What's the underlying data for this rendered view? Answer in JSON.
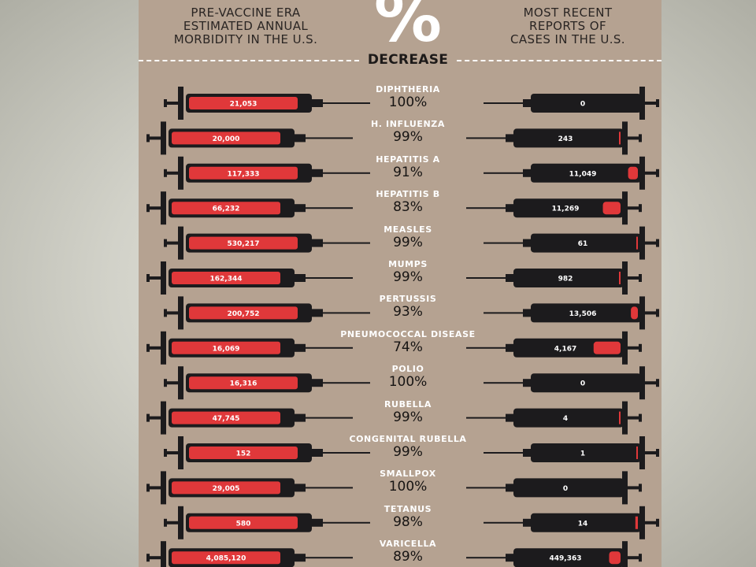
{
  "header": {
    "left_label": "PRE-VACCINE ERA\nESTIMATED ANNUAL\nMORBIDITY IN THE U.S.",
    "right_label": "MOST RECENT\nREPORTS OF\nCASES IN THE U.S.",
    "percent_symbol": "%",
    "center_label": "DECREASE"
  },
  "colors": {
    "panel": "#b5a291",
    "syringe_body": "#1c1b1d",
    "fill_red": "#e0383a",
    "text_white": "#ffffff"
  },
  "chart_data": {
    "type": "table",
    "columns": [
      "Disease",
      "Pre-vaccine era estimated annual morbidity",
      "% decrease",
      "Most recent reports of cases"
    ],
    "rows": [
      {
        "disease": "DIPHTHERIA",
        "pre": "21,053",
        "pct": "100%",
        "recent": "0",
        "pre_value": 21053,
        "recent_value": 0
      },
      {
        "disease": "H. INFLUENZA",
        "pre": "20,000",
        "pct": "99%",
        "recent": "243",
        "pre_value": 20000,
        "recent_value": 243
      },
      {
        "disease": "HEPATITIS A",
        "pre": "117,333",
        "pct": "91%",
        "recent": "11,049",
        "pre_value": 117333,
        "recent_value": 11049
      },
      {
        "disease": "HEPATITIS B",
        "pre": "66,232",
        "pct": "83%",
        "recent": "11,269",
        "pre_value": 66232,
        "recent_value": 11269
      },
      {
        "disease": "MEASLES",
        "pre": "530,217",
        "pct": "99%",
        "recent": "61",
        "pre_value": 530217,
        "recent_value": 61
      },
      {
        "disease": "MUMPS",
        "pre": "162,344",
        "pct": "99%",
        "recent": "982",
        "pre_value": 162344,
        "recent_value": 982
      },
      {
        "disease": "PERTUSSIS",
        "pre": "200,752",
        "pct": "93%",
        "recent": "13,506",
        "pre_value": 200752,
        "recent_value": 13506
      },
      {
        "disease": "PNEUMOCOCCAL DISEASE",
        "pre": "16,069",
        "pct": "74%",
        "recent": "4,167",
        "pre_value": 16069,
        "recent_value": 4167
      },
      {
        "disease": "POLIO",
        "pre": "16,316",
        "pct": "100%",
        "recent": "0",
        "pre_value": 16316,
        "recent_value": 0
      },
      {
        "disease": "RUBELLA",
        "pre": "47,745",
        "pct": "99%",
        "recent": "4",
        "pre_value": 47745,
        "recent_value": 4
      },
      {
        "disease": "CONGENITAL RUBELLA",
        "pre": "152",
        "pct": "99%",
        "recent": "1",
        "pre_value": 152,
        "recent_value": 1
      },
      {
        "disease": "SMALLPOX",
        "pre": "29,005",
        "pct": "100%",
        "recent": "0",
        "pre_value": 29005,
        "recent_value": 0
      },
      {
        "disease": "TETANUS",
        "pre": "580",
        "pct": "98%",
        "recent": "14",
        "pre_value": 580,
        "recent_value": 14
      },
      {
        "disease": "VARICELLA",
        "pre": "4,085,120",
        "pct": "89%",
        "recent": "449,363",
        "pre_value": 4085120,
        "recent_value": 449363
      }
    ]
  }
}
